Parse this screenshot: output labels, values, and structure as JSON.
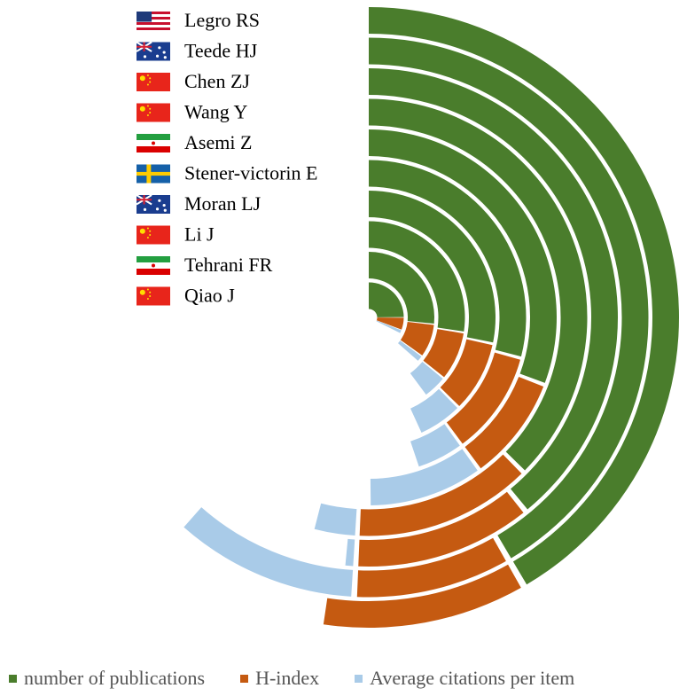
{
  "chart_data": {
    "type": "radial-stacked-bar",
    "title": "",
    "authors": [
      {
        "name": "Legro RS",
        "country": "United States",
        "flag": "us-flag",
        "publications": 50,
        "h_index": 13,
        "avg_citations": 0
      },
      {
        "name": "Teede HJ",
        "country": "Australia",
        "flag": "au-flag",
        "publications": 50,
        "h_index": 11,
        "avg_citations": 13
      },
      {
        "name": "Chen ZJ",
        "country": "China",
        "flag": "cn-flag",
        "publications": 47,
        "h_index": 14,
        "avg_citations": 1
      },
      {
        "name": "Wang Y",
        "country": "China",
        "flag": "cn-flag",
        "publications": 45,
        "h_index": 16,
        "avg_citations": 4
      },
      {
        "name": "Asemi Z",
        "country": "Iran",
        "flag": "ir-flag",
        "publications": 37,
        "h_index": 11,
        "avg_citations": 12
      },
      {
        "name": "Stener-victorin E",
        "country": "Sweden",
        "flag": "se-flag",
        "publications": 35,
        "h_index": 13,
        "avg_citations": 6
      },
      {
        "name": "Moran LJ",
        "country": "Australia",
        "flag": "au-flag",
        "publications": 34,
        "h_index": 11,
        "avg_citations": 7
      },
      {
        "name": "Li J",
        "country": "China",
        "flag": "cn-flag",
        "publications": 33,
        "h_index": 10,
        "avg_citations": 5
      },
      {
        "name": "Tehrani FR",
        "country": "Iran",
        "flag": "ir-flag",
        "publications": 32,
        "h_index": 10,
        "avg_citations": 2
      },
      {
        "name": "Qiao J",
        "country": "China",
        "flag": "cn-flag",
        "publications": 30,
        "h_index": 7,
        "avg_citations": 2
      }
    ],
    "series": [
      {
        "name": "number of publications",
        "key": "publications",
        "color": "#4a7d2c"
      },
      {
        "name": "H-index",
        "key": "h_index",
        "color": "#c55a11"
      },
      {
        "name": "Average citations per item",
        "key": "avg_citations",
        "color": "#a9cbe8"
      }
    ],
    "full_circle_total": 120,
    "start_angle": "12 o'clock",
    "direction": "clockwise",
    "legend_position": "bottom",
    "grid": false
  },
  "legend": [
    {
      "label": "number of publications",
      "color": "#4a7d2c"
    },
    {
      "label": "H-index",
      "color": "#c55a11"
    },
    {
      "label": "Average citations per item",
      "color": "#a9cbe8"
    }
  ]
}
